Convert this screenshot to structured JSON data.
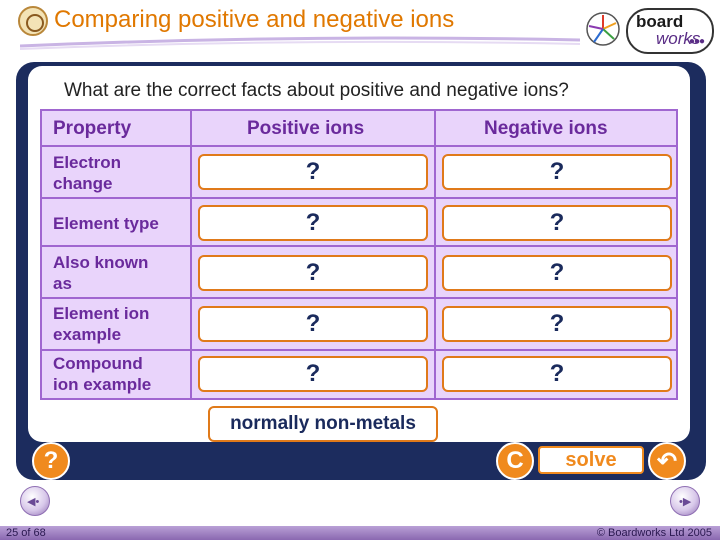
{
  "header": {
    "title": "Comparing positive and negative ions",
    "brand_board": "board",
    "brand_works": "works"
  },
  "question": "What are the correct facts about positive and negative ions?",
  "table": {
    "headers": [
      "Property",
      "Positive ions",
      "Negative ions"
    ],
    "rows": [
      {
        "property": [
          "Electron",
          "change"
        ],
        "positive": "?",
        "negative": "?"
      },
      {
        "property": [
          "Element type",
          ""
        ],
        "positive": "?",
        "negative": "?"
      },
      {
        "property": [
          "Also known",
          "as"
        ],
        "positive": "?",
        "negative": "?"
      },
      {
        "property": [
          "Element ion",
          "example"
        ],
        "positive": "?",
        "negative": "?"
      },
      {
        "property": [
          "Compound",
          "ion example"
        ],
        "positive": "?",
        "negative": "?"
      }
    ]
  },
  "drag_label": "normally non-metals",
  "controls": {
    "help_label": "?",
    "reset_label": "C",
    "solve_label": "solve",
    "undo_label": "↶"
  },
  "footer": {
    "page": "25 of 68",
    "copyright": "© Boardworks Ltd 2005"
  },
  "colors": {
    "title": "#e07800",
    "panel": "#1c2c5e",
    "table_border": "#a066d0",
    "cell_fill": "#e9d4fb",
    "accent": "#f08a1e"
  }
}
